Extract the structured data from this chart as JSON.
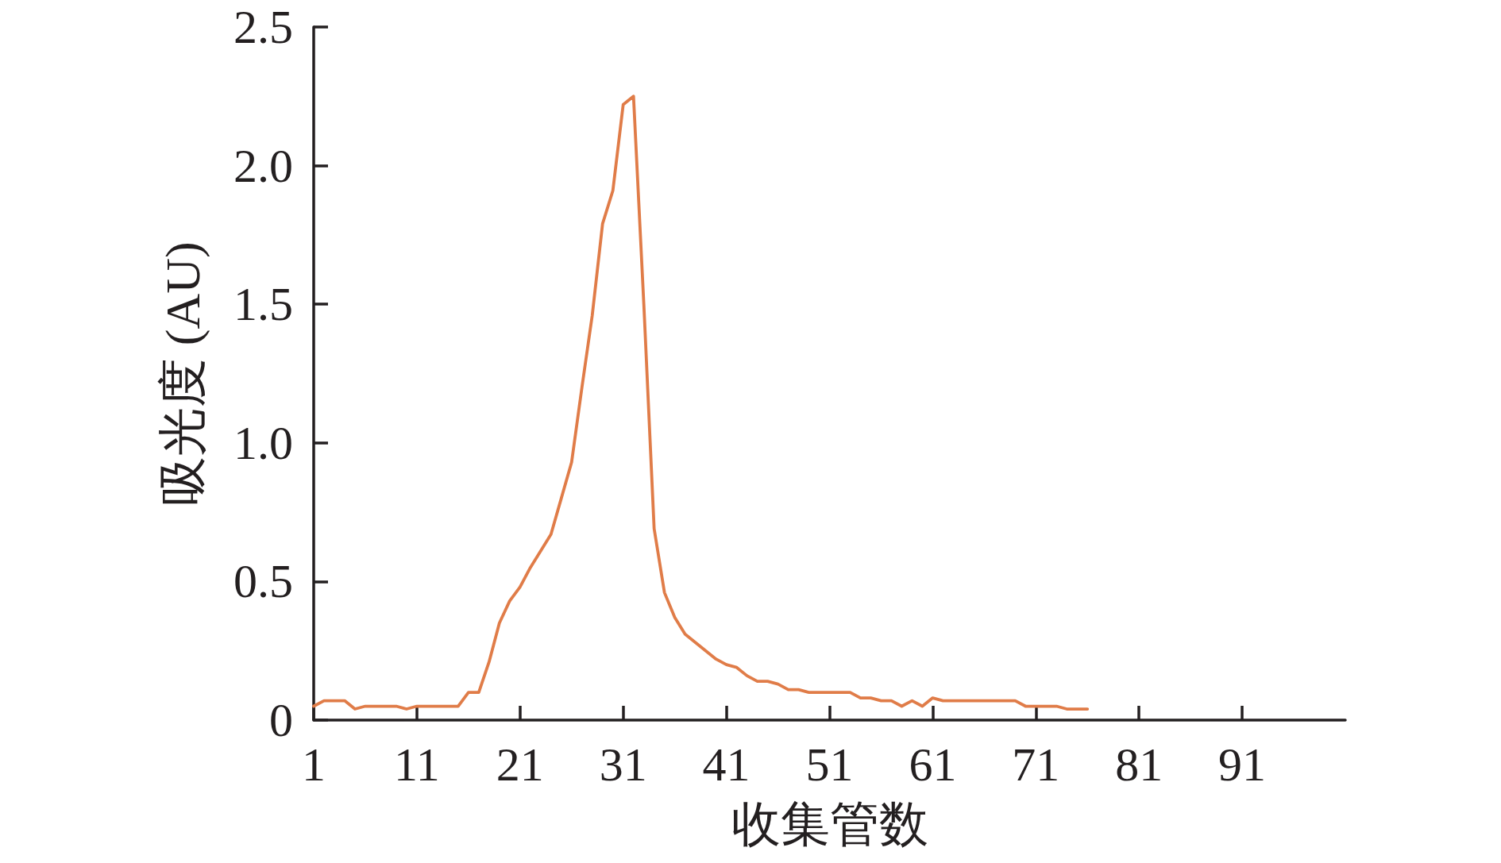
{
  "chart_data": {
    "type": "line",
    "xlabel": "收集管数",
    "ylabel": "吸光度 (AU)",
    "x": [
      1,
      2,
      3,
      4,
      5,
      6,
      7,
      8,
      9,
      10,
      11,
      12,
      13,
      14,
      15,
      16,
      17,
      18,
      19,
      20,
      21,
      22,
      23,
      24,
      25,
      26,
      27,
      28,
      29,
      30,
      31,
      32,
      33,
      34,
      35,
      36,
      37,
      38,
      39,
      40,
      41,
      42,
      43,
      44,
      45,
      46,
      47,
      48,
      49,
      50,
      51,
      52,
      53,
      54,
      55,
      56,
      57,
      58,
      59,
      60,
      61,
      62,
      63,
      64,
      65,
      66,
      67,
      68,
      69,
      70,
      71,
      72,
      73,
      74,
      75,
      76
    ],
    "series": [
      {
        "color": "#e07c48",
        "values": [
          0.05,
          0.07,
          0.07,
          0.07,
          0.04,
          0.05,
          0.05,
          0.05,
          0.05,
          0.04,
          0.05,
          0.05,
          0.05,
          0.05,
          0.05,
          0.1,
          0.1,
          0.21,
          0.35,
          0.43,
          0.48,
          0.55,
          0.61,
          0.67,
          0.8,
          0.93,
          1.2,
          1.46,
          1.79,
          1.91,
          2.22,
          2.25,
          1.5,
          0.69,
          0.46,
          0.37,
          0.31,
          0.28,
          0.25,
          0.22,
          0.2,
          0.19,
          0.16,
          0.14,
          0.14,
          0.13,
          0.11,
          0.11,
          0.1,
          0.1,
          0.1,
          0.1,
          0.1,
          0.08,
          0.08,
          0.07,
          0.07,
          0.05,
          0.07,
          0.05,
          0.08,
          0.07,
          0.07,
          0.07,
          0.07,
          0.07,
          0.07,
          0.07,
          0.07,
          0.05,
          0.05,
          0.05,
          0.05,
          0.04,
          0.04,
          0.04
        ]
      }
    ],
    "xlim": [
      1,
      101
    ],
    "xticks": [
      1,
      11,
      21,
      31,
      41,
      51,
      61,
      71,
      81,
      91
    ],
    "ylim": [
      0,
      2.5
    ],
    "yticks": [
      0,
      0.5,
      {
        "value": 1,
        "label": "1.0"
      },
      1.5,
      {
        "value": 2,
        "label": "2.0"
      },
      2.5
    ],
    "grid": false,
    "marker": "none",
    "line_style": "solid"
  }
}
